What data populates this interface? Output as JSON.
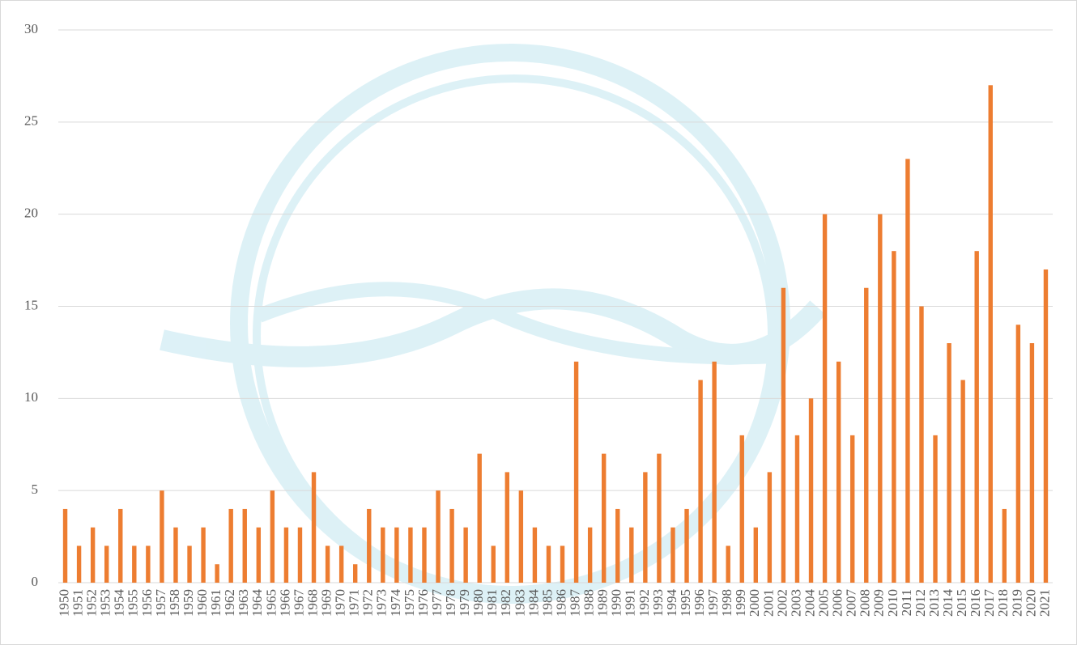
{
  "chart_data": {
    "type": "bar",
    "categories": [
      "1950",
      "1951",
      "1952",
      "1953",
      "1954",
      "1955",
      "1956",
      "1957",
      "1958",
      "1959",
      "1960",
      "1961",
      "1962",
      "1963",
      "1964",
      "1965",
      "1966",
      "1967",
      "1968",
      "1969",
      "1970",
      "1971",
      "1972",
      "1973",
      "1974",
      "1975",
      "1976",
      "1977",
      "1978",
      "1979",
      "1980",
      "1981",
      "1982",
      "1983",
      "1984",
      "1985",
      "1986",
      "1987",
      "1988",
      "1989",
      "1990",
      "1991",
      "1992",
      "1993",
      "1994",
      "1995",
      "1996",
      "1997",
      "1998",
      "1999",
      "2000",
      "2001",
      "2002",
      "2003",
      "2004",
      "2005",
      "2006",
      "2007",
      "2008",
      "2009",
      "2010",
      "2011",
      "2012",
      "2013",
      "2014",
      "2015",
      "2016",
      "2017",
      "2018",
      "2019",
      "2020",
      "2021"
    ],
    "values": [
      4,
      2,
      3,
      2,
      4,
      2,
      2,
      5,
      3,
      2,
      3,
      1,
      4,
      4,
      3,
      5,
      3,
      3,
      6,
      2,
      2,
      1,
      4,
      3,
      3,
      3,
      3,
      5,
      4,
      3,
      7,
      2,
      6,
      5,
      3,
      2,
      2,
      12,
      3,
      7,
      4,
      3,
      6,
      7,
      3,
      4,
      11,
      12,
      2,
      8,
      3,
      6,
      16,
      8,
      10,
      20,
      12,
      8,
      16,
      20,
      18,
      23,
      15,
      8,
      13,
      11,
      18,
      27,
      4,
      14,
      13,
      17
    ],
    "color": "#ed7d31",
    "ylim": [
      0,
      30
    ],
    "yticks": [
      0,
      5,
      10,
      15,
      20,
      25,
      30
    ],
    "grid": true
  }
}
